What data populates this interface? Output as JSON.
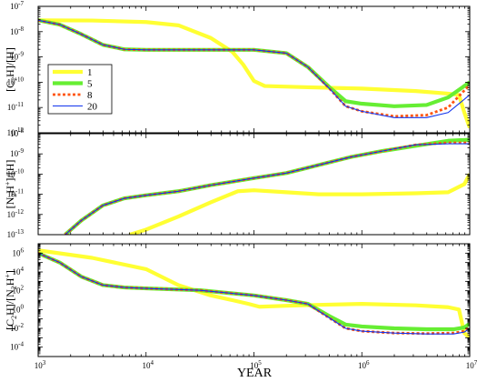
{
  "figure": {
    "xlabel": "YEAR",
    "x_tick_base": "10",
    "x_tick_exponents": [
      "3",
      "4",
      "5",
      "6",
      "7"
    ],
    "x_log_range": [
      3,
      7
    ]
  },
  "chart_data": [
    {
      "type": "line",
      "ylabel": "[C2H]/[H]",
      "ylabel_parts": {
        "pre": "[C",
        "sub1": "2",
        "mid": "H]/[H]"
      },
      "yscale": "log",
      "ylim_log": [
        -12,
        -7
      ],
      "y_tick_exponents": [
        "-12",
        "-11",
        "-10",
        "-9",
        "-8",
        "-7"
      ],
      "legend": {
        "position": "left",
        "entries": [
          "1",
          "5",
          "8",
          "20"
        ]
      },
      "series": [
        {
          "name": "1",
          "color": "#ffff33",
          "style": "thick",
          "points": [
            [
              3,
              -7.55
            ],
            [
              3.5,
              -7.56
            ],
            [
              4,
              -7.62
            ],
            [
              4.3,
              -7.75
            ],
            [
              4.6,
              -8.25
            ],
            [
              4.8,
              -8.8
            ],
            [
              4.9,
              -9.3
            ],
            [
              5,
              -9.95
            ],
            [
              5.1,
              -10.15
            ],
            [
              5.5,
              -10.2
            ],
            [
              6,
              -10.25
            ],
            [
              6.5,
              -10.35
            ],
            [
              6.8,
              -10.45
            ],
            [
              6.9,
              -10.5
            ],
            [
              6.95,
              -11.2
            ],
            [
              7,
              -11.8
            ]
          ]
        },
        {
          "name": "5",
          "color": "#66ee33",
          "style": "thick",
          "points": [
            [
              3,
              -7.55
            ],
            [
              3.2,
              -7.72
            ],
            [
              3.4,
              -8.1
            ],
            [
              3.6,
              -8.52
            ],
            [
              3.8,
              -8.7
            ],
            [
              4,
              -8.72
            ],
            [
              4.5,
              -8.72
            ],
            [
              5,
              -8.72
            ],
            [
              5.3,
              -8.85
            ],
            [
              5.5,
              -9.4
            ],
            [
              5.7,
              -10.2
            ],
            [
              5.85,
              -10.75
            ],
            [
              6,
              -10.85
            ],
            [
              6.3,
              -10.95
            ],
            [
              6.6,
              -10.9
            ],
            [
              6.8,
              -10.6
            ],
            [
              7,
              -10.0
            ]
          ]
        },
        {
          "name": "8",
          "color": "#ff5511",
          "style": "dotted",
          "points": [
            [
              3,
              -7.55
            ],
            [
              3.2,
              -7.72
            ],
            [
              3.4,
              -8.1
            ],
            [
              3.6,
              -8.52
            ],
            [
              3.8,
              -8.7
            ],
            [
              4,
              -8.72
            ],
            [
              4.5,
              -8.72
            ],
            [
              5,
              -8.72
            ],
            [
              5.3,
              -8.85
            ],
            [
              5.5,
              -9.4
            ],
            [
              5.7,
              -10.25
            ],
            [
              5.85,
              -10.95
            ],
            [
              6,
              -11.15
            ],
            [
              6.3,
              -11.35
            ],
            [
              6.6,
              -11.3
            ],
            [
              6.8,
              -11.0
            ],
            [
              7,
              -10.1
            ]
          ]
        },
        {
          "name": "20",
          "color": "#1133ee",
          "style": "thin",
          "points": [
            [
              3,
              -7.55
            ],
            [
              3.2,
              -7.72
            ],
            [
              3.4,
              -8.1
            ],
            [
              3.6,
              -8.52
            ],
            [
              3.8,
              -8.7
            ],
            [
              4,
              -8.72
            ],
            [
              4.5,
              -8.72
            ],
            [
              5,
              -8.72
            ],
            [
              5.3,
              -8.85
            ],
            [
              5.5,
              -9.4
            ],
            [
              5.7,
              -10.25
            ],
            [
              5.85,
              -10.95
            ],
            [
              6,
              -11.15
            ],
            [
              6.3,
              -11.4
            ],
            [
              6.6,
              -11.4
            ],
            [
              6.8,
              -11.2
            ],
            [
              7,
              -10.5
            ]
          ]
        }
      ]
    },
    {
      "type": "line",
      "ylabel": "[N2H+]/[H]",
      "ylabel_parts": {
        "pre": "[N",
        "sub1": "2",
        "mid": "H",
        "sup": "+",
        "post": "]/[H]"
      },
      "yscale": "log",
      "ylim_log": [
        -13,
        -8
      ],
      "y_tick_exponents": [
        "-13",
        "-12",
        "-11",
        "-10",
        "-9",
        "-8"
      ],
      "series": [
        {
          "name": "1",
          "color": "#ffff33",
          "style": "thick",
          "points": [
            [
              3.85,
              -13
            ],
            [
              4,
              -12.75
            ],
            [
              4.3,
              -12.1
            ],
            [
              4.6,
              -11.4
            ],
            [
              4.85,
              -10.85
            ],
            [
              5,
              -10.8
            ],
            [
              5.3,
              -10.9
            ],
            [
              5.6,
              -11.0
            ],
            [
              6,
              -11.0
            ],
            [
              6.5,
              -10.95
            ],
            [
              6.8,
              -10.9
            ],
            [
              6.95,
              -10.5
            ],
            [
              7,
              -10.0
            ]
          ]
        },
        {
          "name": "5",
          "color": "#66ee33",
          "style": "thick",
          "points": [
            [
              3.25,
              -13
            ],
            [
              3.4,
              -12.3
            ],
            [
              3.6,
              -11.55
            ],
            [
              3.8,
              -11.2
            ],
            [
              4,
              -11.05
            ],
            [
              4.3,
              -10.85
            ],
            [
              4.6,
              -10.55
            ],
            [
              5,
              -10.2
            ],
            [
              5.3,
              -9.95
            ],
            [
              5.6,
              -9.55
            ],
            [
              5.9,
              -9.15
            ],
            [
              6.2,
              -8.85
            ],
            [
              6.5,
              -8.6
            ],
            [
              6.8,
              -8.35
            ],
            [
              7,
              -8.3
            ]
          ]
        },
        {
          "name": "8",
          "color": "#ff5511",
          "style": "dotted",
          "points": [
            [
              3.25,
              -13
            ],
            [
              3.4,
              -12.3
            ],
            [
              3.6,
              -11.55
            ],
            [
              3.8,
              -11.2
            ],
            [
              4,
              -11.05
            ],
            [
              4.3,
              -10.85
            ],
            [
              4.6,
              -10.55
            ],
            [
              5,
              -10.2
            ],
            [
              5.3,
              -9.95
            ],
            [
              5.6,
              -9.55
            ],
            [
              5.9,
              -9.15
            ],
            [
              6.2,
              -8.85
            ],
            [
              6.5,
              -8.55
            ],
            [
              6.8,
              -8.45
            ],
            [
              7,
              -8.45
            ]
          ]
        },
        {
          "name": "20",
          "color": "#1133ee",
          "style": "thin",
          "points": [
            [
              3.25,
              -13
            ],
            [
              3.4,
              -12.3
            ],
            [
              3.6,
              -11.55
            ],
            [
              3.8,
              -11.2
            ],
            [
              4,
              -11.05
            ],
            [
              4.3,
              -10.85
            ],
            [
              4.6,
              -10.55
            ],
            [
              5,
              -10.2
            ],
            [
              5.3,
              -9.95
            ],
            [
              5.6,
              -9.55
            ],
            [
              5.9,
              -9.15
            ],
            [
              6.2,
              -8.85
            ],
            [
              6.5,
              -8.55
            ],
            [
              6.8,
              -8.5
            ],
            [
              7,
              -8.5
            ]
          ]
        }
      ]
    },
    {
      "type": "line",
      "ylabel": "[C2H]/[N2H+]",
      "ylabel_parts": {
        "pre": "[C",
        "sub1": "2",
        "mid": "H]/[N",
        "sub2": "2",
        "mid2": "H",
        "sup": "+",
        "post": "]"
      },
      "yscale": "log",
      "ylim_log": [
        -5,
        7
      ],
      "y_tick_exponents": [
        "-4",
        "-2",
        "0",
        "2",
        "4",
        "6"
      ],
      "series": [
        {
          "name": "1",
          "color": "#ffff33",
          "style": "thick",
          "points": [
            [
              3,
              6.3
            ],
            [
              3.5,
              5.5
            ],
            [
              4,
              4.3
            ],
            [
              4.3,
              2.6
            ],
            [
              4.6,
              1.5
            ],
            [
              4.8,
              1.0
            ],
            [
              4.95,
              0.6
            ],
            [
              5.05,
              0.3
            ],
            [
              5.3,
              0.4
            ],
            [
              5.6,
              0.5
            ],
            [
              6,
              0.6
            ],
            [
              6.5,
              0.45
            ],
            [
              6.8,
              0.25
            ],
            [
              6.9,
              0.0
            ],
            [
              6.95,
              -2.5
            ],
            [
              7,
              -3.0
            ]
          ]
        },
        {
          "name": "5",
          "color": "#66ee33",
          "style": "thick",
          "points": [
            [
              3,
              6.0
            ],
            [
              3.2,
              5.0
            ],
            [
              3.4,
              3.5
            ],
            [
              3.6,
              2.6
            ],
            [
              3.8,
              2.35
            ],
            [
              4,
              2.25
            ],
            [
              4.5,
              2.05
            ],
            [
              5,
              1.5
            ],
            [
              5.3,
              1.0
            ],
            [
              5.5,
              0.6
            ],
            [
              5.7,
              -0.7
            ],
            [
              5.85,
              -1.6
            ],
            [
              6,
              -1.8
            ],
            [
              6.3,
              -2.0
            ],
            [
              6.6,
              -2.1
            ],
            [
              6.85,
              -2.1
            ],
            [
              6.95,
              -1.9
            ],
            [
              7,
              -1.5
            ]
          ]
        },
        {
          "name": "8",
          "color": "#ff5511",
          "style": "dotted",
          "points": [
            [
              3,
              6.0
            ],
            [
              3.2,
              5.0
            ],
            [
              3.4,
              3.5
            ],
            [
              3.6,
              2.6
            ],
            [
              3.8,
              2.35
            ],
            [
              4,
              2.25
            ],
            [
              4.5,
              2.05
            ],
            [
              5,
              1.5
            ],
            [
              5.3,
              1.0
            ],
            [
              5.5,
              0.6
            ],
            [
              5.7,
              -0.9
            ],
            [
              5.85,
              -2.0
            ],
            [
              6,
              -2.3
            ],
            [
              6.3,
              -2.5
            ],
            [
              6.6,
              -2.55
            ],
            [
              6.85,
              -2.5
            ],
            [
              6.95,
              -2.3
            ],
            [
              7,
              -1.8
            ]
          ]
        },
        {
          "name": "20",
          "color": "#1133ee",
          "style": "thin",
          "points": [
            [
              3,
              6.0
            ],
            [
              3.2,
              5.0
            ],
            [
              3.4,
              3.5
            ],
            [
              3.6,
              2.6
            ],
            [
              3.8,
              2.35
            ],
            [
              4,
              2.25
            ],
            [
              4.5,
              2.05
            ],
            [
              5,
              1.5
            ],
            [
              5.3,
              1.0
            ],
            [
              5.5,
              0.6
            ],
            [
              5.7,
              -0.9
            ],
            [
              5.85,
              -2.0
            ],
            [
              6,
              -2.3
            ],
            [
              6.3,
              -2.5
            ],
            [
              6.6,
              -2.6
            ],
            [
              6.85,
              -2.6
            ],
            [
              6.95,
              -2.4
            ],
            [
              7,
              -2.0
            ]
          ]
        }
      ]
    }
  ]
}
